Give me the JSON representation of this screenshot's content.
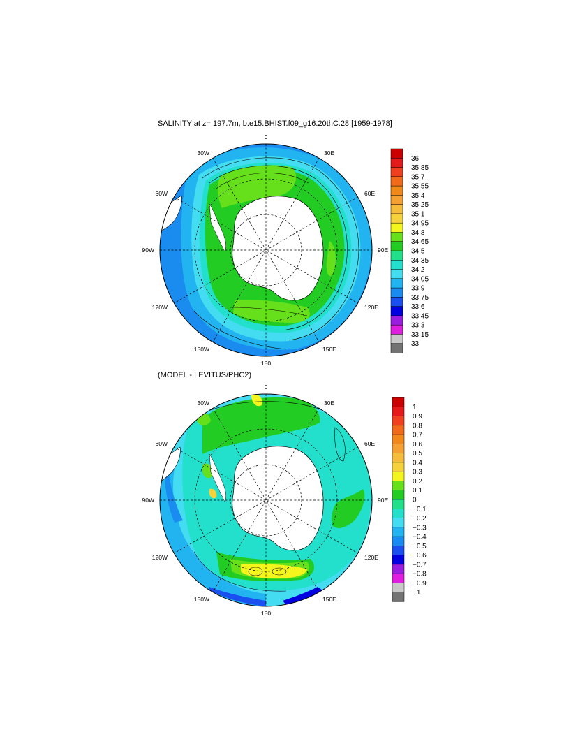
{
  "panels": [
    {
      "id": "salinity",
      "title": "SALINITY at z= 197.7m, b.e15.BHIST.f09_g16.20thC.28 [1959-1978]",
      "lon_labels": [
        "0",
        "30E",
        "60E",
        "90E",
        "120E",
        "150E",
        "180",
        "150W",
        "120W",
        "90W",
        "60W",
        "30W"
      ],
      "colorbar": {
        "labels": [
          "36",
          "35.85",
          "35.7",
          "35.55",
          "35.4",
          "35.25",
          "35.1",
          "34.95",
          "34.8",
          "34.65",
          "34.5",
          "34.35",
          "34.2",
          "34.05",
          "33.9",
          "33.75",
          "33.6",
          "33.45",
          "33.3",
          "33.15",
          "33"
        ],
        "colors": [
          "#cc0000",
          "#e51919",
          "#f04020",
          "#f06a1a",
          "#f0881a",
          "#f5a033",
          "#f5bc3c",
          "#f5d23c",
          "#f5f51e",
          "#66e01a",
          "#22cc22",
          "#22e08a",
          "#22e0cc",
          "#44dcf0",
          "#22b4f0",
          "#1a8cf0",
          "#1a50f0",
          "#0000e0",
          "#9b1ee0",
          "#e01ee0",
          "#c8c8c8",
          "#737373"
        ]
      }
    },
    {
      "id": "difference",
      "title": "(MODEL - LEVITUS/PHC2)",
      "lon_labels": [
        "0",
        "30E",
        "60E",
        "90E",
        "120E",
        "150E",
        "180",
        "150W",
        "120W",
        "90W",
        "60W",
        "30W"
      ],
      "colorbar": {
        "labels": [
          "1",
          "0.9",
          "0.8",
          "0.7",
          "0.6",
          "0.5",
          "0.4",
          "0.3",
          "0.2",
          "0.1",
          "0",
          "−0.1",
          "−0.2",
          "−0.3",
          "−0.4",
          "−0.5",
          "−0.6",
          "−0.7",
          "−0.8",
          "−0.9",
          "−1"
        ],
        "colors": [
          "#cc0000",
          "#e51919",
          "#f04020",
          "#f06a1a",
          "#f0881a",
          "#f5a033",
          "#f5bc3c",
          "#f5d23c",
          "#f5f51e",
          "#66e01a",
          "#22cc22",
          "#22e08a",
          "#22e0cc",
          "#44dcf0",
          "#22b4f0",
          "#1a8cf0",
          "#1a50f0",
          "#0000e0",
          "#9b1ee0",
          "#e01ee0",
          "#c8c8c8",
          "#737373"
        ]
      }
    }
  ]
}
